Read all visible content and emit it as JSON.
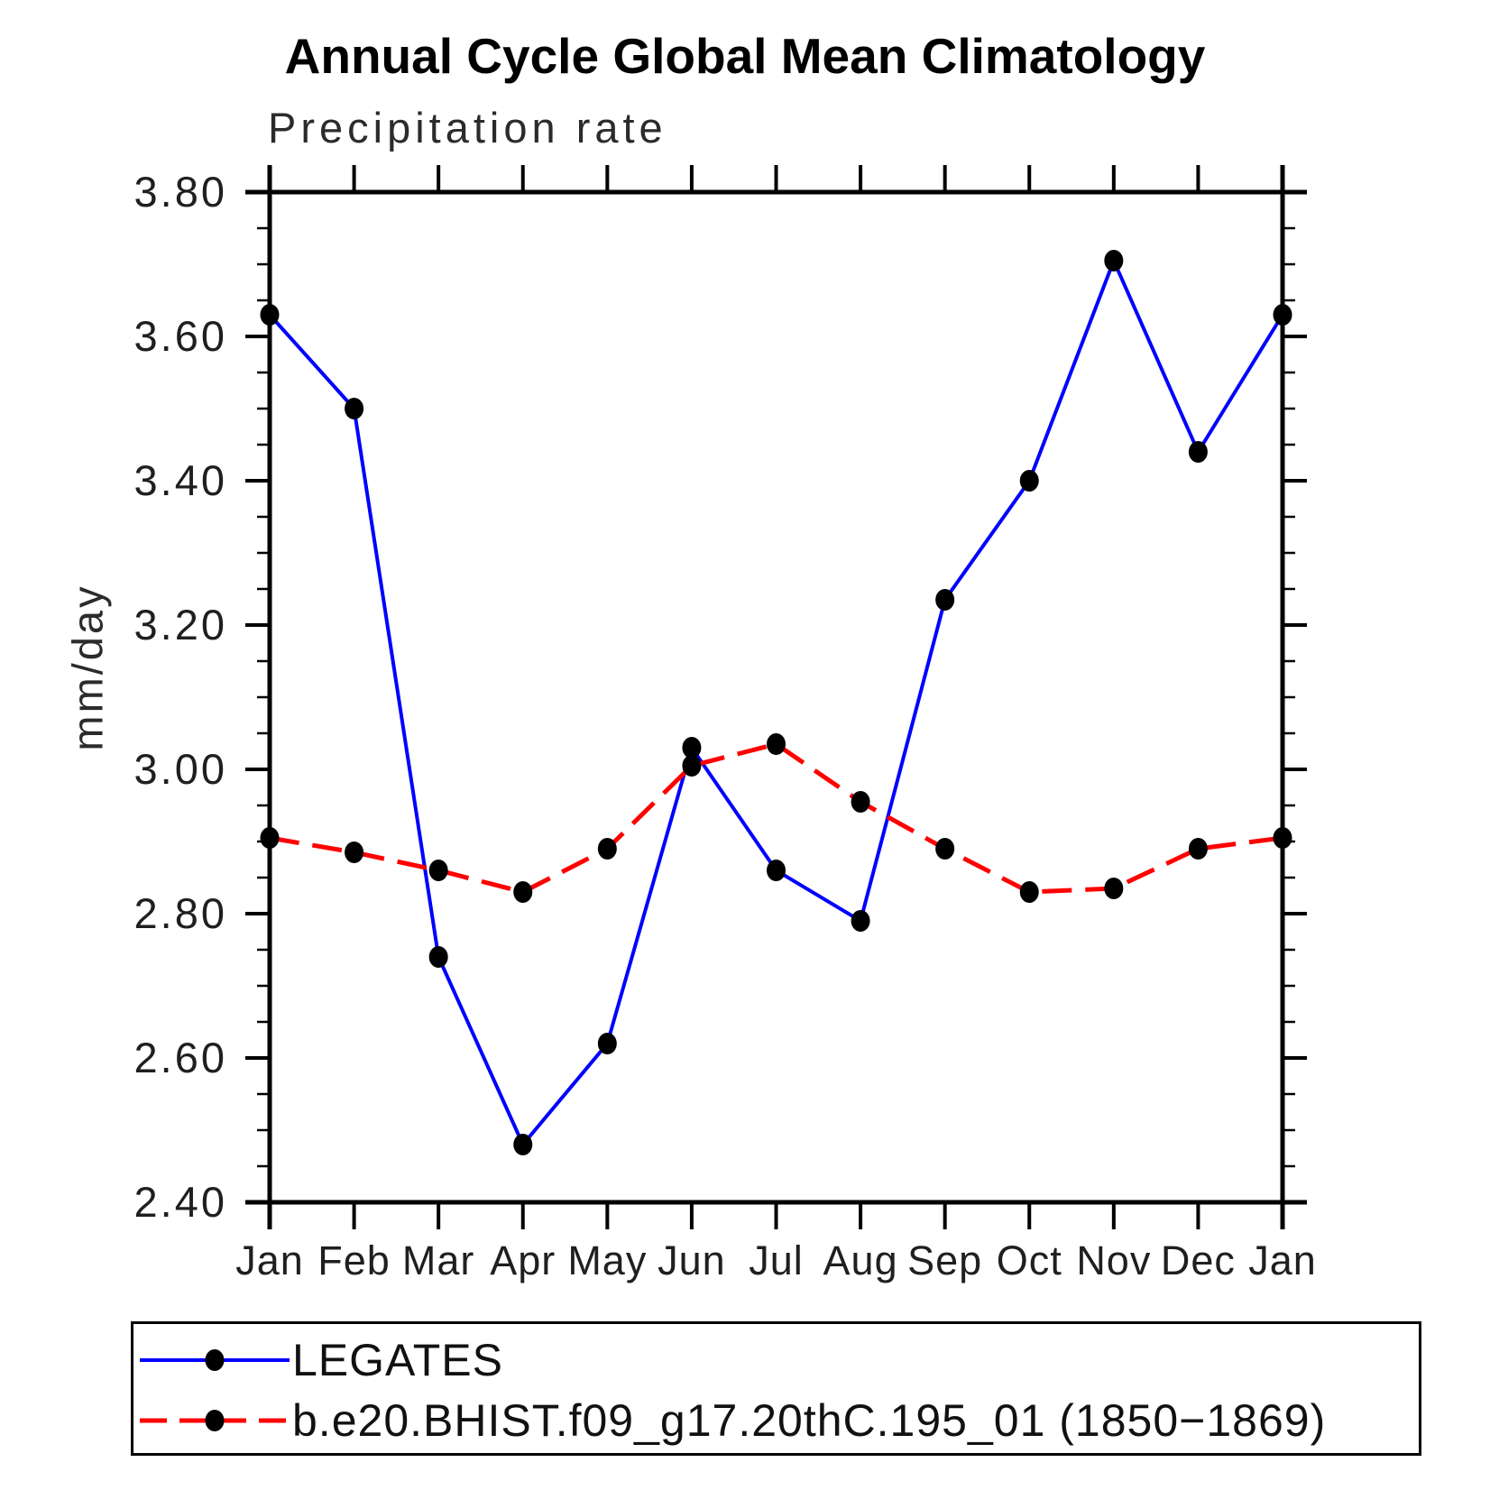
{
  "chart_data": {
    "type": "line",
    "title": "Annual Cycle Global Mean Climatology",
    "subtitle": "Precipitation rate",
    "ylabel": "mm/day",
    "categories": [
      "Jan",
      "Feb",
      "Mar",
      "Apr",
      "May",
      "Jun",
      "Jul",
      "Aug",
      "Sep",
      "Oct",
      "Nov",
      "Dec",
      "Jan"
    ],
    "series": [
      {
        "name": "LEGATES",
        "color": "#0000ff",
        "line_style": "solid",
        "marker": "filled-circle",
        "values": [
          3.63,
          3.5,
          2.74,
          2.48,
          2.62,
          3.03,
          2.86,
          2.79,
          3.235,
          3.4,
          3.705,
          3.44,
          3.63
        ]
      },
      {
        "name": "b.e20.BHIST.f09_g17.20thC.195_01 (1850−1869)",
        "color": "#ff0000",
        "line_style": "dashed",
        "marker": "filled-circle",
        "values": [
          2.905,
          2.885,
          2.86,
          2.83,
          2.89,
          3.005,
          3.035,
          2.955,
          2.89,
          2.83,
          2.835,
          2.89,
          2.905
        ]
      }
    ],
    "marker_color": "#000000",
    "axis_color": "#000000",
    "ylim": [
      2.4,
      3.8
    ],
    "ytick_labels": [
      "3.80",
      "3.60",
      "3.40",
      "3.20",
      "3.00",
      "2.80",
      "2.60",
      "2.40"
    ],
    "yminor_step": 0.05,
    "grid": false,
    "legend_position": "bottom-left-box"
  }
}
